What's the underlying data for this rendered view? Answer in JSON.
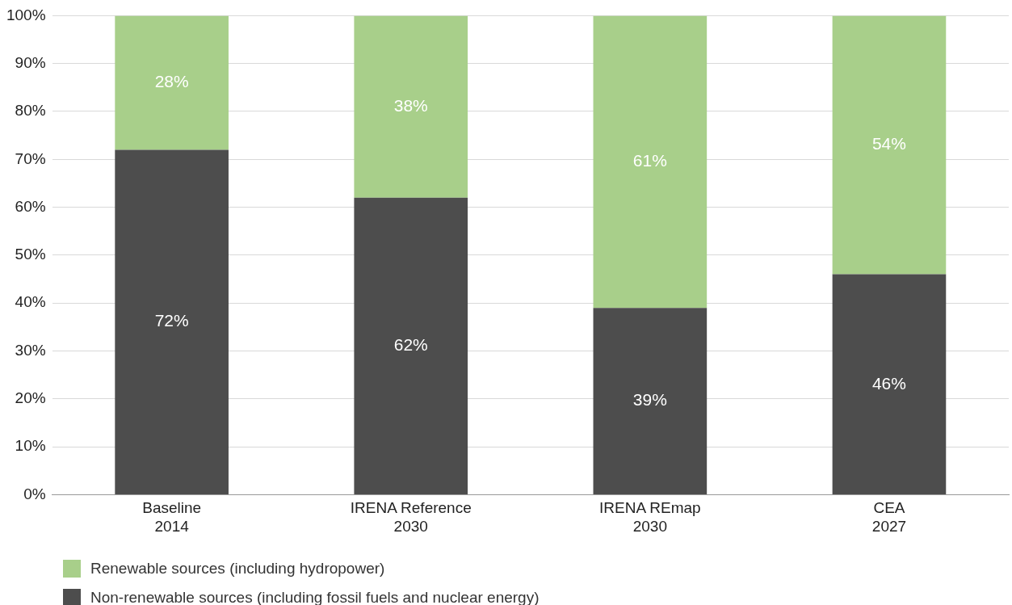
{
  "chart_data": {
    "type": "bar",
    "stacked": true,
    "categories": [
      "Baseline\n2014",
      "IRENA Reference\n2030",
      "IRENA REmap\n2030",
      "CEA\n2027"
    ],
    "series": [
      {
        "name": "Non-renewable sources (including fossil fuels and nuclear energy)",
        "color": "#4d4d4d",
        "values": [
          72,
          62,
          39,
          46
        ],
        "value_labels": [
          "72%",
          "62%",
          "39%",
          "46%"
        ]
      },
      {
        "name": "Renewable sources (including hydropower)",
        "color": "#a8cf8a",
        "values": [
          28,
          38,
          61,
          54
        ],
        "value_labels": [
          "28%",
          "38%",
          "61%",
          "54%"
        ]
      }
    ],
    "ylim": [
      0,
      100
    ],
    "yticks": [
      {
        "value": 0,
        "label": "0%"
      },
      {
        "value": 10,
        "label": "10%"
      },
      {
        "value": 20,
        "label": "20%"
      },
      {
        "value": 30,
        "label": "30%"
      },
      {
        "value": 40,
        "label": "40%"
      },
      {
        "value": 50,
        "label": "50%"
      },
      {
        "value": 60,
        "label": "60%"
      },
      {
        "value": 70,
        "label": "70%"
      },
      {
        "value": 80,
        "label": "80%"
      },
      {
        "value": 90,
        "label": "90%"
      },
      {
        "value": 100,
        "label": "100%"
      }
    ],
    "grid": "y",
    "legend": "bottom left"
  }
}
